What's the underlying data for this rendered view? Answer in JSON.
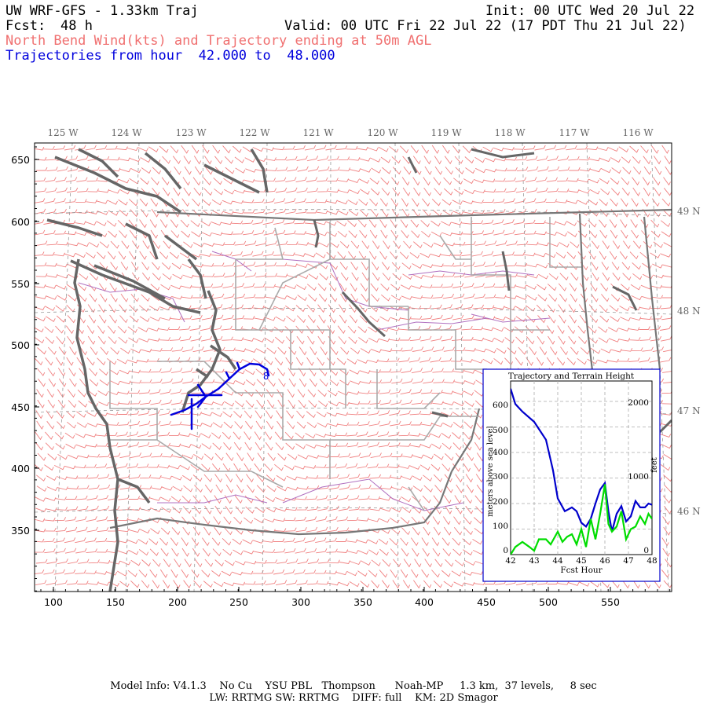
{
  "header": {
    "title": "UW WRF-GFS - 1.33km Traj",
    "init": "Init: 00 UTC Wed 20 Jul 22",
    "fcst_label": "Fcst:",
    "fcst_value": "48 h",
    "valid": "Valid: 00 UTC Fri 22 Jul 22 (17 PDT Thu 21 Jul 22)",
    "subtitle_red": "North Bend Wind(kts) and Trajectory ending at 50m AGL",
    "subtitle_blue": "Trajectories from hour  42.000 to  48.000"
  },
  "map": {
    "top_lon_labels": [
      "125 W",
      "124 W",
      "123 W",
      "122 W",
      "121 W",
      "120 W",
      "119 W",
      "118 W",
      "117 W",
      "116 W"
    ],
    "right_lat_labels": [
      "49 N",
      "48 N",
      "47 N",
      "46 N"
    ],
    "left_y_labels": [
      "650",
      "600",
      "550",
      "500",
      "450",
      "400",
      "350"
    ],
    "bottom_x_labels": [
      "100",
      "150",
      "200",
      "250",
      "300",
      "350",
      "400",
      "450",
      "500",
      "550"
    ],
    "trajectory_label": "8",
    "colors": {
      "barbs": "#f08080",
      "coast": "#666666",
      "borders": "#aaaaaa",
      "counties": "#b070c0",
      "trajectory": "#0000dd"
    }
  },
  "inset": {
    "title": "Trajectory and Terrain Height",
    "left_axis_label": "meters above sea level",
    "right_axis_label": "feet",
    "x_label": "Fcst Hour",
    "left_ticks": [
      "600",
      "500",
      "400",
      "300",
      "200",
      "100",
      "0"
    ],
    "right_ticks": [
      "2000",
      "1000",
      "0"
    ],
    "x_ticks": [
      "42",
      "43",
      "44",
      "45",
      "46",
      "47",
      "48"
    ]
  },
  "chart_data": {
    "type": "line",
    "title": "Trajectory and Terrain Height",
    "xlabel": "Fcst Hour",
    "ylabel": "meters above sea level",
    "xlim": [
      42,
      48
    ],
    "ylim": [
      0,
      680
    ],
    "series": [
      {
        "color": "#0000cc",
        "x": [
          42.0,
          42.2,
          42.5,
          43.0,
          43.5,
          43.8,
          44.0,
          44.3,
          44.6,
          44.8,
          45.0,
          45.2,
          45.4,
          45.6,
          45.8,
          46.0,
          46.15,
          46.3,
          46.5,
          46.7,
          46.9,
          47.1,
          47.3,
          47.5,
          47.7,
          47.85,
          48.0
        ],
        "y": [
          650,
          590,
          560,
          520,
          450,
          330,
          220,
          170,
          185,
          170,
          125,
          110,
          140,
          200,
          255,
          280,
          170,
          90,
          160,
          190,
          130,
          150,
          210,
          185,
          185,
          200,
          195
        ]
      },
      {
        "color": "#00dd00",
        "x": [
          42.0,
          42.2,
          42.5,
          42.8,
          43.0,
          43.2,
          43.5,
          43.7,
          44.0,
          44.2,
          44.4,
          44.6,
          44.8,
          45.0,
          45.2,
          45.4,
          45.6,
          45.8,
          46.0,
          46.15,
          46.3,
          46.5,
          46.7,
          46.9,
          47.1,
          47.3,
          47.5,
          47.7,
          47.85,
          48.0
        ],
        "y": [
          0,
          30,
          50,
          30,
          15,
          60,
          60,
          40,
          90,
          50,
          70,
          80,
          40,
          100,
          30,
          140,
          60,
          160,
          275,
          120,
          90,
          110,
          170,
          60,
          100,
          110,
          150,
          120,
          160,
          140
        ]
      }
    ]
  },
  "footer": {
    "line1": "Model Info: V4.1.3    No Cu    YSU PBL   Thompson      Noah-MP     1.3 km,  37 levels,     8 sec",
    "line2": "LW: RRTMG SW: RRTMG    DIFF: full    KM: 2D Smagor"
  }
}
